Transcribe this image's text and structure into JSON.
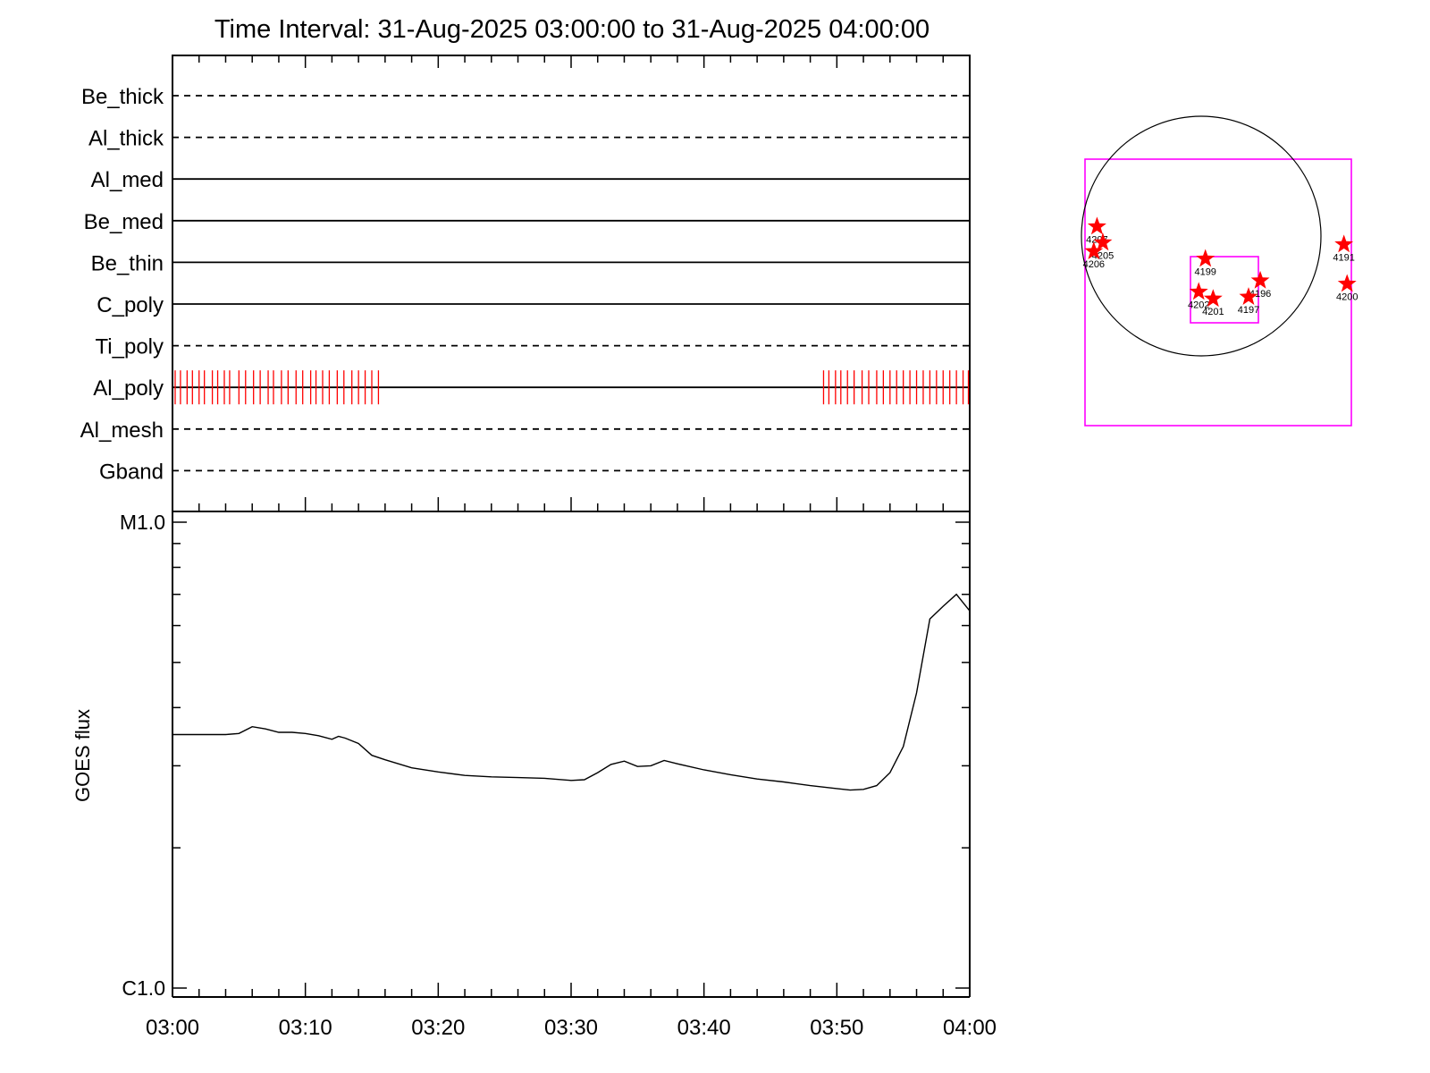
{
  "title": "Time Interval: 31-Aug-2025 03:00:00 to 31-Aug-2025 04:00:00",
  "colors": {
    "axis": "#000000",
    "event_marks": "#ff0000",
    "fov_box": "#ff00ff",
    "solar_disk": "#000000",
    "region_star": "#ff0000",
    "goes_curve": "#000000"
  },
  "chart_data": [
    {
      "type": "filter_timeline",
      "title": "Time Interval: 31-Aug-2025 03:00:00 to 31-Aug-2025 04:00:00",
      "x_range_minutes": [
        0,
        60
      ],
      "filters": [
        {
          "label": "Be_thick",
          "style": "dashed"
        },
        {
          "label": "Al_thick",
          "style": "dashed"
        },
        {
          "label": "Al_med",
          "style": "solid"
        },
        {
          "label": "Be_med",
          "style": "solid"
        },
        {
          "label": "Be_thin",
          "style": "solid"
        },
        {
          "label": "C_poly",
          "style": "solid"
        },
        {
          "label": "Ti_poly",
          "style": "dashed"
        },
        {
          "label": "Al_poly",
          "style": "solid"
        },
        {
          "label": "Al_mesh",
          "style": "dashed"
        },
        {
          "label": "Gband",
          "style": "dashed"
        }
      ],
      "observation_marks": {
        "filter": "Al_poly",
        "minutes": [
          0.2,
          0.6,
          1.1,
          1.5,
          2.0,
          2.4,
          3.0,
          3.4,
          3.9,
          4.3,
          5.0,
          5.5,
          6.1,
          6.6,
          7.2,
          7.6,
          8.2,
          8.7,
          9.3,
          9.8,
          10.4,
          10.8,
          11.3,
          11.8,
          12.4,
          12.9,
          13.5,
          14.0,
          14.5,
          15.0,
          15.5,
          49.0,
          49.4,
          49.9,
          50.3,
          50.8,
          51.3,
          51.9,
          52.4,
          53.0,
          53.5,
          54.0,
          54.5,
          55.0,
          55.5,
          56.0,
          56.5,
          57.0,
          57.5,
          58.0,
          58.5,
          59.0,
          59.5,
          59.9
        ]
      }
    },
    {
      "type": "line",
      "xlabel": "",
      "ylabel": "GOES flux",
      "y_scale": "log",
      "ylim": [
        "C1.0",
        "M1.0"
      ],
      "ytick_labels": [
        "C1.0",
        "M1.0"
      ],
      "xtick_labels": [
        "03:00",
        "03:10",
        "03:20",
        "03:30",
        "03:40",
        "03:50",
        "04:00"
      ],
      "x_minutes": [
        0,
        2,
        4,
        5,
        6,
        7,
        8,
        9,
        10,
        11,
        12,
        12.5,
        13,
        14,
        15,
        16,
        18,
        20,
        22,
        24,
        26,
        28,
        30,
        31,
        32,
        33,
        34,
        35,
        36,
        37,
        38,
        40,
        42,
        44,
        46,
        48,
        50,
        51,
        52,
        53,
        54,
        55,
        56,
        57,
        58,
        59,
        60
      ],
      "flux_class_C": [
        3.5,
        3.5,
        3.5,
        3.52,
        3.64,
        3.6,
        3.54,
        3.54,
        3.52,
        3.48,
        3.42,
        3.47,
        3.44,
        3.35,
        3.16,
        3.09,
        2.97,
        2.91,
        2.86,
        2.84,
        2.83,
        2.82,
        2.79,
        2.8,
        2.9,
        3.02,
        3.07,
        2.99,
        3.0,
        3.08,
        3.03,
        2.94,
        2.87,
        2.81,
        2.77,
        2.72,
        2.68,
        2.66,
        2.67,
        2.72,
        2.9,
        3.3,
        4.3,
        6.2,
        6.6,
        7.0,
        6.45
      ]
    },
    {
      "type": "scatter",
      "description_kind": "solar_disk_map",
      "points": [
        {
          "label": "4207",
          "x": 0.045,
          "y": 0.253
        },
        {
          "label": "4205",
          "x": 0.067,
          "y": 0.313
        },
        {
          "label": "4206",
          "x": 0.033,
          "y": 0.346
        },
        {
          "label": "4199",
          "x": 0.452,
          "y": 0.374
        },
        {
          "label": "4191",
          "x": 0.972,
          "y": 0.32
        },
        {
          "label": "4200",
          "x": 0.984,
          "y": 0.468
        },
        {
          "label": "4196",
          "x": 0.658,
          "y": 0.456
        },
        {
          "label": "4202",
          "x": 0.427,
          "y": 0.498
        },
        {
          "label": "4201",
          "x": 0.481,
          "y": 0.524
        },
        {
          "label": "4197",
          "x": 0.614,
          "y": 0.517
        }
      ]
    }
  ]
}
